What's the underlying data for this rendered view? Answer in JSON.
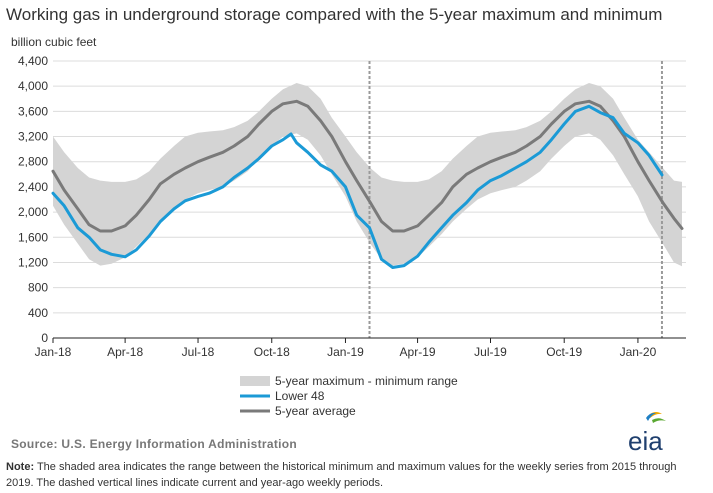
{
  "title": "Working gas in underground storage compared with the 5-year maximum and minimum",
  "unit_label": "billion cubic feet",
  "source": "Source: U.S. Energy Information Administration",
  "note_label": "Note:",
  "note_text": " The shaded area indicates the range between the historical minimum and maximum values for the weekly series from 2015 through 2019. The dashed vertical lines indicate current and year-ago weekly periods.",
  "logo_text": "eia",
  "colors": {
    "range": "#d4d4d4",
    "lower48": "#1b9ad6",
    "average": "#7a7a7a",
    "grid": "#dcdcdc",
    "dashed": "#9a9a9a"
  },
  "chart_data": {
    "type": "line",
    "ylim": [
      0,
      4400
    ],
    "yticks": [
      0,
      400,
      800,
      1200,
      1600,
      2000,
      2400,
      2800,
      3200,
      3600,
      4000,
      4400
    ],
    "ytick_labels": [
      "0",
      "400",
      "800",
      "1,200",
      "1,600",
      "2,000",
      "2,400",
      "2,800",
      "3,200",
      "3,600",
      "4,000",
      "4,400"
    ],
    "xlim": [
      "2018-01-01",
      "2020-03-01"
    ],
    "xticks": [
      "2018-01-01",
      "2018-04-01",
      "2018-07-01",
      "2018-10-01",
      "2019-01-01",
      "2019-04-01",
      "2019-07-01",
      "2019-10-01",
      "2020-01-01"
    ],
    "xtick_labels": [
      "Jan-18",
      "Apr-18",
      "Jul-18",
      "Oct-18",
      "Jan-19",
      "Apr-19",
      "Jul-19",
      "Oct-19",
      "Jan-20"
    ],
    "vlines": [
      "2019-01-31",
      "2020-01-31"
    ],
    "legend": [
      {
        "label": "5-year maximum - minimum range",
        "key": "range"
      },
      {
        "label": "Lower 48",
        "key": "lower48"
      },
      {
        "label": "5-year average",
        "key": "average"
      }
    ],
    "range": {
      "x": [
        "2018-01-01",
        "2018-01-15",
        "2018-02-01",
        "2018-02-15",
        "2018-03-01",
        "2018-03-15",
        "2018-04-01",
        "2018-04-15",
        "2018-05-01",
        "2018-05-15",
        "2018-06-01",
        "2018-06-15",
        "2018-07-01",
        "2018-07-15",
        "2018-08-01",
        "2018-08-15",
        "2018-09-01",
        "2018-09-15",
        "2018-10-01",
        "2018-10-15",
        "2018-11-01",
        "2018-11-15",
        "2018-12-01",
        "2018-12-15",
        "2019-01-01",
        "2019-01-15",
        "2019-02-01",
        "2019-02-15",
        "2019-03-01",
        "2019-03-15",
        "2019-04-01",
        "2019-04-15",
        "2019-05-01",
        "2019-05-15",
        "2019-06-01",
        "2019-06-15",
        "2019-07-01",
        "2019-07-15",
        "2019-08-01",
        "2019-08-15",
        "2019-09-01",
        "2019-09-15",
        "2019-10-01",
        "2019-10-15",
        "2019-11-01",
        "2019-11-15",
        "2019-12-01",
        "2019-12-15",
        "2020-01-01",
        "2020-01-15",
        "2020-02-01",
        "2020-02-15",
        "2020-02-25"
      ],
      "max": [
        3200,
        2950,
        2700,
        2550,
        2500,
        2480,
        2480,
        2520,
        2650,
        2850,
        3050,
        3200,
        3260,
        3280,
        3300,
        3350,
        3450,
        3600,
        3800,
        3950,
        4050,
        4000,
        3800,
        3500,
        3200,
        2950,
        2700,
        2550,
        2500,
        2480,
        2480,
        2520,
        2650,
        2850,
        3050,
        3200,
        3260,
        3280,
        3300,
        3350,
        3450,
        3600,
        3800,
        3950,
        4050,
        4000,
        3800,
        3500,
        3150,
        2950,
        2700,
        2500,
        2480
      ],
      "min": [
        2100,
        1800,
        1500,
        1250,
        1150,
        1180,
        1280,
        1450,
        1650,
        1850,
        2050,
        2200,
        2300,
        2350,
        2400,
        2500,
        2650,
        2850,
        3050,
        3200,
        3250,
        3150,
        2900,
        2600,
        2250,
        1850,
        1500,
        1250,
        1150,
        1180,
        1280,
        1450,
        1650,
        1850,
        2050,
        2200,
        2300,
        2350,
        2400,
        2500,
        2650,
        2850,
        3050,
        3200,
        3250,
        3150,
        2900,
        2600,
        2250,
        1850,
        1500,
        1200,
        1140
      ]
    },
    "series": [
      {
        "name": "Lower 48",
        "key": "lower48",
        "x": [
          "2018-01-01",
          "2018-01-15",
          "2018-02-01",
          "2018-02-15",
          "2018-03-01",
          "2018-03-15",
          "2018-04-01",
          "2018-04-15",
          "2018-05-01",
          "2018-05-15",
          "2018-06-01",
          "2018-06-15",
          "2018-07-01",
          "2018-07-15",
          "2018-08-01",
          "2018-08-15",
          "2018-09-01",
          "2018-09-15",
          "2018-10-01",
          "2018-10-15",
          "2018-10-25",
          "2018-11-01",
          "2018-11-15",
          "2018-12-01",
          "2018-12-15",
          "2019-01-01",
          "2019-01-15",
          "2019-01-31",
          "2019-02-15",
          "2019-03-01",
          "2019-03-15",
          "2019-04-01",
          "2019-04-15",
          "2019-05-01",
          "2019-05-15",
          "2019-06-01",
          "2019-06-15",
          "2019-07-01",
          "2019-07-15",
          "2019-08-01",
          "2019-08-15",
          "2019-09-01",
          "2019-09-15",
          "2019-10-01",
          "2019-10-15",
          "2019-11-01",
          "2019-11-15",
          "2019-12-01",
          "2019-12-15",
          "2020-01-01",
          "2020-01-15",
          "2020-01-31"
        ],
        "values": [
          2300,
          2100,
          1750,
          1600,
          1400,
          1330,
          1290,
          1400,
          1620,
          1850,
          2050,
          2180,
          2250,
          2300,
          2400,
          2550,
          2700,
          2850,
          3050,
          3150,
          3240,
          3100,
          2950,
          2750,
          2650,
          2400,
          1950,
          1750,
          1250,
          1120,
          1150,
          1300,
          1520,
          1750,
          1950,
          2150,
          2350,
          2500,
          2580,
          2700,
          2800,
          2950,
          3150,
          3400,
          3600,
          3680,
          3580,
          3500,
          3250,
          3100,
          2900,
          2590
        ]
      },
      {
        "name": "5-year average",
        "key": "average",
        "x": [
          "2018-01-01",
          "2018-01-15",
          "2018-02-01",
          "2018-02-15",
          "2018-03-01",
          "2018-03-15",
          "2018-04-01",
          "2018-04-15",
          "2018-05-01",
          "2018-05-15",
          "2018-06-01",
          "2018-06-15",
          "2018-07-01",
          "2018-07-15",
          "2018-08-01",
          "2018-08-15",
          "2018-09-01",
          "2018-09-15",
          "2018-10-01",
          "2018-10-15",
          "2018-11-01",
          "2018-11-15",
          "2018-12-01",
          "2018-12-15",
          "2019-01-01",
          "2019-01-15",
          "2019-02-01",
          "2019-02-15",
          "2019-03-01",
          "2019-03-15",
          "2019-04-01",
          "2019-04-15",
          "2019-05-01",
          "2019-05-15",
          "2019-06-01",
          "2019-06-15",
          "2019-07-01",
          "2019-07-15",
          "2019-08-01",
          "2019-08-15",
          "2019-09-01",
          "2019-09-15",
          "2019-10-01",
          "2019-10-15",
          "2019-11-01",
          "2019-11-15",
          "2019-12-01",
          "2019-12-15",
          "2020-01-01",
          "2020-01-15",
          "2020-02-01",
          "2020-02-15",
          "2020-02-25"
        ],
        "values": [
          2650,
          2350,
          2050,
          1800,
          1700,
          1700,
          1780,
          1950,
          2200,
          2450,
          2600,
          2700,
          2800,
          2870,
          2950,
          3050,
          3200,
          3400,
          3600,
          3720,
          3760,
          3680,
          3450,
          3200,
          2800,
          2500,
          2150,
          1850,
          1700,
          1700,
          1780,
          1950,
          2150,
          2400,
          2600,
          2700,
          2800,
          2870,
          2950,
          3050,
          3200,
          3400,
          3600,
          3720,
          3760,
          3680,
          3450,
          3200,
          2800,
          2500,
          2150,
          1900,
          1740
        ]
      }
    ]
  }
}
